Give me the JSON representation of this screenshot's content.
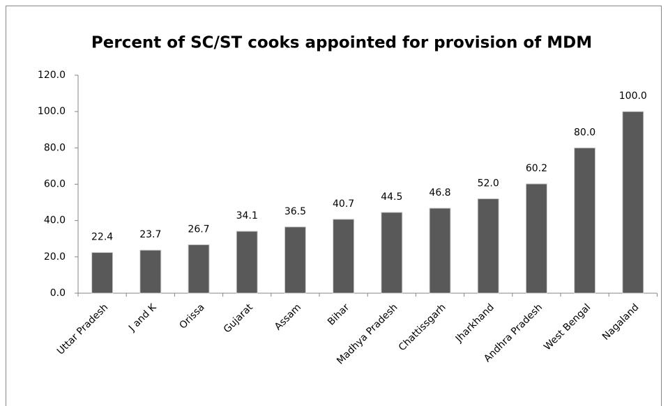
{
  "chart_data": {
    "type": "bar",
    "title": "Percent of SC/ST cooks appointed for provision of MDM",
    "categories": [
      "Uttar Pradesh",
      "J and K",
      "Orissa",
      "Gujarat",
      "Assam",
      "Bihar",
      "Madhya Pradesh",
      "Chattissgarh",
      "Jharkhand",
      "Andhra Pradesh",
      "West Bengal",
      "Nagaland"
    ],
    "values": [
      22.4,
      23.7,
      26.7,
      34.1,
      36.5,
      40.7,
      44.5,
      46.8,
      52.0,
      60.2,
      80.0,
      100.0
    ],
    "value_labels": [
      "22.4",
      "23.7",
      "26.7",
      "34.1",
      "36.5",
      "40.7",
      "44.5",
      "46.8",
      "52.0",
      "60.2",
      "80.0",
      "100.0"
    ],
    "color": "#595959",
    "ylim": [
      0,
      120
    ],
    "yticks": [
      {
        "value": 0,
        "label": "0.0"
      },
      {
        "value": 20,
        "label": "20.0"
      },
      {
        "value": 40,
        "label": "40.0"
      },
      {
        "value": 60,
        "label": "60.0"
      },
      {
        "value": 80,
        "label": "80.0"
      },
      {
        "value": 100,
        "label": "100.0"
      },
      {
        "value": 120,
        "label": "120.0"
      }
    ],
    "grid": false
  }
}
